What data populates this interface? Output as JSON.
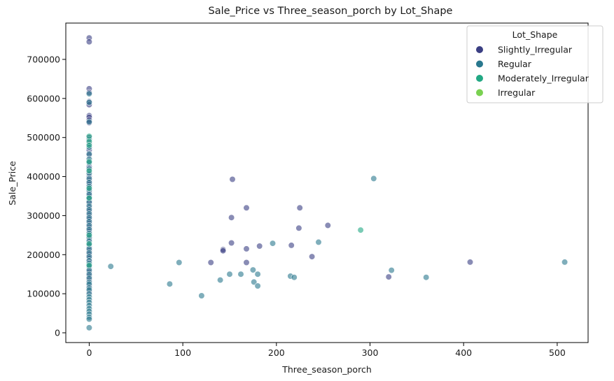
{
  "chart_data": {
    "type": "scatter",
    "title": "Sale_Price vs Three_season_porch by Lot_Shape",
    "xlabel": "Three_season_porch",
    "ylabel": "Sale_Price",
    "xlim": [
      -25,
      533
    ],
    "ylim": [
      -25000,
      793000
    ],
    "x_ticks": [
      0,
      100,
      200,
      300,
      400,
      500
    ],
    "y_ticks": [
      0,
      100000,
      200000,
      300000,
      400000,
      500000,
      600000,
      700000
    ],
    "grid": false,
    "legend": {
      "title": "Lot_Shape",
      "placement": "top-right",
      "entries": [
        "Slightly_Irregular",
        "Regular",
        "Moderately_Irregular",
        "Irregular"
      ]
    },
    "series": [
      {
        "name": "Slightly_Irregular",
        "color": "#3b3f83",
        "points": [
          [
            0,
            755000
          ],
          [
            0,
            745000
          ],
          [
            0,
            625000
          ],
          [
            0,
            615000
          ],
          [
            0,
            592000
          ],
          [
            0,
            584000
          ],
          [
            0,
            556000
          ],
          [
            0,
            552000
          ],
          [
            0,
            545000
          ],
          [
            0,
            538000
          ],
          [
            0,
            500000
          ],
          [
            0,
            485000
          ],
          [
            0,
            468000
          ],
          [
            0,
            455000
          ],
          [
            0,
            440000
          ],
          [
            0,
            425000
          ],
          [
            0,
            412000
          ],
          [
            0,
            400000
          ],
          [
            0,
            390000
          ],
          [
            0,
            380000
          ],
          [
            0,
            370000
          ],
          [
            0,
            360000
          ],
          [
            0,
            350000
          ],
          [
            0,
            340000
          ],
          [
            0,
            332000
          ],
          [
            0,
            320000
          ],
          [
            0,
            310000
          ],
          [
            0,
            300000
          ],
          [
            0,
            290000
          ],
          [
            0,
            280000
          ],
          [
            0,
            270000
          ],
          [
            0,
            260000
          ],
          [
            0,
            250000
          ],
          [
            0,
            240000
          ],
          [
            0,
            230000
          ],
          [
            0,
            220000
          ],
          [
            0,
            210000
          ],
          [
            0,
            200000
          ],
          [
            0,
            190000
          ],
          [
            0,
            182000
          ],
          [
            0,
            175000
          ],
          [
            0,
            165000
          ],
          [
            0,
            155000
          ],
          [
            0,
            145000
          ],
          [
            0,
            135000
          ],
          [
            0,
            120000
          ],
          [
            0,
            105000
          ],
          [
            153,
            393000
          ],
          [
            168,
            320000
          ],
          [
            225,
            320000
          ],
          [
            152,
            295000
          ],
          [
            255,
            275000
          ],
          [
            224,
            268000
          ],
          [
            152,
            230000
          ],
          [
            182,
            222000
          ],
          [
            216,
            224000
          ],
          [
            168,
            215000
          ],
          [
            143,
            213000
          ],
          [
            143,
            210000
          ],
          [
            238,
            195000
          ],
          [
            130,
            180000
          ],
          [
            168,
            180000
          ],
          [
            320,
            143000
          ],
          [
            407,
            181000
          ]
        ]
      },
      {
        "name": "Regular",
        "color": "#29788e",
        "points": [
          [
            0,
            612000
          ],
          [
            0,
            590000
          ],
          [
            0,
            540000
          ],
          [
            0,
            495000
          ],
          [
            0,
            475000
          ],
          [
            0,
            458000
          ],
          [
            0,
            445000
          ],
          [
            0,
            435000
          ],
          [
            0,
            420000
          ],
          [
            0,
            408000
          ],
          [
            0,
            395000
          ],
          [
            0,
            385000
          ],
          [
            0,
            375000
          ],
          [
            0,
            365000
          ],
          [
            0,
            355000
          ],
          [
            0,
            345000
          ],
          [
            0,
            335000
          ],
          [
            0,
            325000
          ],
          [
            0,
            315000
          ],
          [
            0,
            305000
          ],
          [
            0,
            295000
          ],
          [
            0,
            285000
          ],
          [
            0,
            275000
          ],
          [
            0,
            265000
          ],
          [
            0,
            255000
          ],
          [
            0,
            245000
          ],
          [
            0,
            235000
          ],
          [
            0,
            225000
          ],
          [
            0,
            215000
          ],
          [
            0,
            205000
          ],
          [
            0,
            195000
          ],
          [
            0,
            185000
          ],
          [
            0,
            178000
          ],
          [
            0,
            170000
          ],
          [
            0,
            160000
          ],
          [
            0,
            150000
          ],
          [
            0,
            140000
          ],
          [
            0,
            130000
          ],
          [
            0,
            125000
          ],
          [
            0,
            115000
          ],
          [
            0,
            110000
          ],
          [
            0,
            100000
          ],
          [
            0,
            92000
          ],
          [
            0,
            85000
          ],
          [
            0,
            78000
          ],
          [
            0,
            70000
          ],
          [
            0,
            62000
          ],
          [
            0,
            55000
          ],
          [
            0,
            48000
          ],
          [
            0,
            40000
          ],
          [
            0,
            35000
          ],
          [
            0,
            13000
          ],
          [
            304,
            395000
          ],
          [
            245,
            232000
          ],
          [
            196,
            229000
          ],
          [
            23,
            170000
          ],
          [
            96,
            180000
          ],
          [
            175,
            161000
          ],
          [
            180,
            150000
          ],
          [
            150,
            150000
          ],
          [
            162,
            150000
          ],
          [
            215,
            145000
          ],
          [
            219,
            142000
          ],
          [
            323,
            160000
          ],
          [
            360,
            142000
          ],
          [
            508,
            181000
          ],
          [
            86,
            125000
          ],
          [
            140,
            135000
          ],
          [
            176,
            130000
          ],
          [
            180,
            120000
          ],
          [
            120,
            95000
          ]
        ]
      },
      {
        "name": "Moderately_Irregular",
        "color": "#22a884",
        "points": [
          [
            0,
            503000
          ],
          [
            0,
            490000
          ],
          [
            0,
            480000
          ],
          [
            0,
            438000
          ],
          [
            0,
            415000
          ],
          [
            0,
            370000
          ],
          [
            0,
            345000
          ],
          [
            0,
            250000
          ],
          [
            0,
            228000
          ],
          [
            0,
            173000
          ],
          [
            290,
            263000
          ]
        ]
      },
      {
        "name": "Irregular",
        "color": "#7ad151",
        "points": []
      }
    ]
  }
}
